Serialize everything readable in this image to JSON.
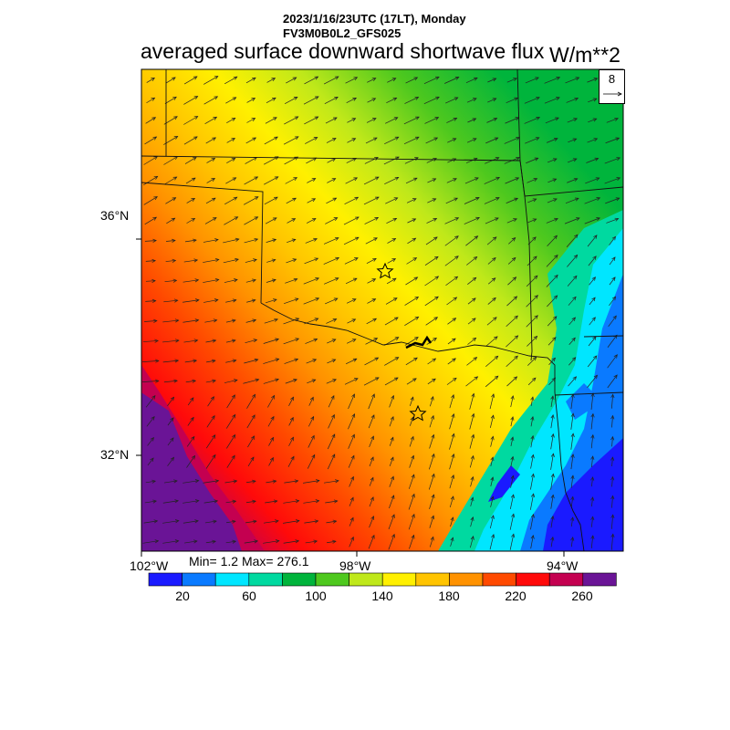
{
  "header": {
    "datetime": "2023/1/16/23UTC (17LT), Monday",
    "model": "FV3M0B0L2_GFS025",
    "title": "averaged surface downward shortwave flux",
    "units": "W/m**2"
  },
  "reference_vector": {
    "value": "8"
  },
  "axes": {
    "lat_labels": [
      "36°N",
      "32°N"
    ],
    "lon_labels": [
      "102°W",
      "98°W",
      "94°W"
    ]
  },
  "stats": {
    "min_max": "Min= 1.2 Max= 276.1"
  },
  "colorbar": {
    "colors": [
      "#1a1aff",
      "#0a7aff",
      "#00e6ff",
      "#00d9a0",
      "#00b43c",
      "#4ec81e",
      "#bfe81a",
      "#fff000",
      "#ffc400",
      "#ff9200",
      "#ff4a00",
      "#ff0a0a",
      "#c40050",
      "#6a1496"
    ],
    "tick_labels": [
      "20",
      "60",
      "100",
      "140",
      "180",
      "220",
      "260"
    ]
  },
  "map_features": {
    "markers": [
      "star",
      "star"
    ]
  }
}
